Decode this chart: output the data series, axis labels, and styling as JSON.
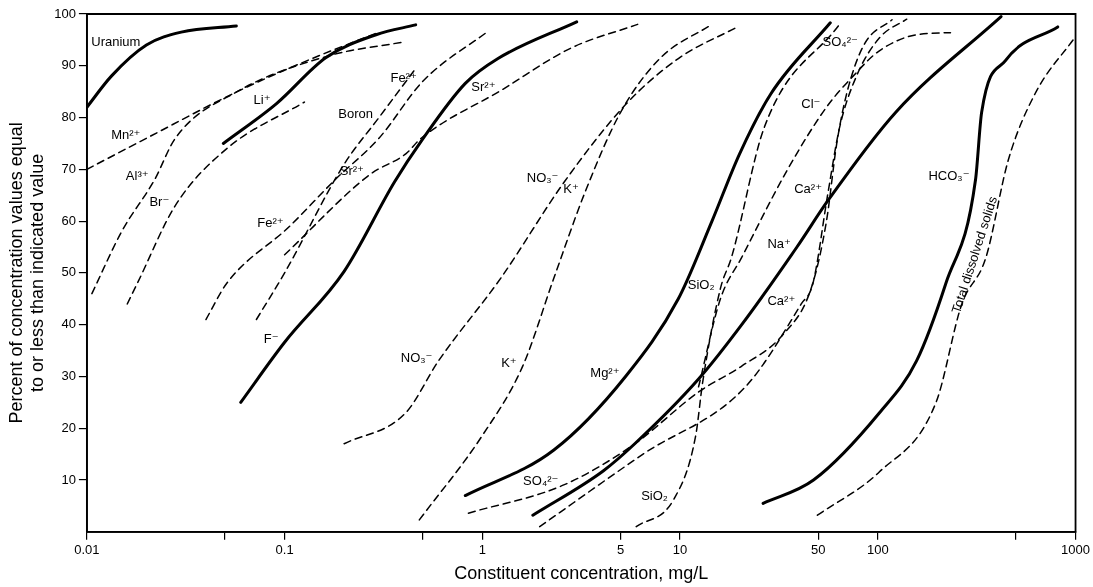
{
  "chart_data": {
    "type": "line",
    "xlabel": "Constituent concentration, mg/L",
    "ylabel": "Percent of concentration values equal to or less than indicated value",
    "log": "x",
    "xlim": [
      0.01,
      1000
    ],
    "xticks": [
      0.01,
      {
        "value": 0.05,
        "label": null
      },
      0.1,
      {
        "value": 0.5,
        "label": null
      },
      1,
      5,
      10,
      50,
      100,
      {
        "value": 500,
        "label": null
      },
      1000
    ],
    "ylim": [
      0,
      100
    ],
    "yticks": [
      10,
      20,
      30,
      40,
      50,
      60,
      70,
      80,
      90,
      100
    ],
    "grid": false,
    "legend": false,
    "series": [
      {
        "color": "#000000",
        "line_style": "solid",
        "x": [
          0.01,
          0.0133,
          0.02,
          0.03,
          0.057
        ],
        "values": [
          82,
          88,
          94,
          96.5,
          97.7
        ]
      },
      {
        "color": "#000000",
        "line_style": "dashed",
        "x": [
          0.01,
          0.02,
          0.0575,
          0.13,
          0.3
        ],
        "values": [
          70,
          76,
          85,
          91,
          96.5
        ]
      },
      {
        "color": "#000000",
        "line_style": "dashed",
        "x": [
          0.0106,
          0.015,
          0.022,
          0.028,
          0.0575,
          0.17,
          0.4
        ],
        "values": [
          46,
          58,
          68,
          76,
          85,
          92,
          94.6
        ]
      },
      {
        "color": "#000000",
        "line_style": "dashed",
        "x": [
          0.016,
          0.018,
          0.028,
          0.051,
          0.126
        ],
        "values": [
          44,
          48,
          63,
          74,
          83
        ]
      },
      {
        "color": "#000000",
        "line_style": "solid",
        "x": [
          0.049,
          0.091,
          0.162,
          0.29,
          0.46
        ],
        "values": [
          75,
          82.7,
          91.6,
          96,
          97.9
        ]
      },
      {
        "color": "#000000",
        "line_style": "dashed",
        "x": [
          0.072,
          0.1,
          0.2,
          0.3,
          0.45
        ],
        "values": [
          41,
          50,
          71,
          80,
          89
        ]
      },
      {
        "color": "#000000",
        "line_style": "dashed",
        "x": [
          0.04,
          0.051,
          0.106,
          0.18,
          0.3,
          0.5,
          1.08
        ],
        "values": [
          41,
          48,
          59,
          68,
          76,
          87,
          96.8
        ]
      },
      {
        "color": "#000000",
        "line_style": "dashed",
        "x": [
          0.1,
          0.27,
          0.41,
          0.49,
          1.25,
          2.8,
          6.1
        ],
        "values": [
          53.5,
          69,
          73,
          76,
          85.3,
          93.4,
          98
        ]
      },
      {
        "color": "#000000",
        "line_style": "solid",
        "x": [
          0.06,
          0.1,
          0.2,
          0.36,
          0.49,
          0.82,
          1.2,
          3
        ],
        "values": [
          25,
          36.6,
          50.3,
          67.6,
          75.4,
          86.6,
          91.4,
          98.5
        ]
      },
      {
        "color": "#000000",
        "line_style": "dashed",
        "x": [
          0.2,
          0.41,
          0.6,
          1.24,
          2.6,
          5.3,
          9.8,
          19.5
        ],
        "values": [
          17,
          23,
          33,
          49,
          67.6,
          82.5,
          91.4,
          97.5
        ]
      },
      {
        "color": "#000000",
        "line_style": "dashed",
        "x": [
          0.48,
          1,
          1.6,
          2.3,
          3.3,
          5,
          7.9,
          14.5
        ],
        "values": [
          2.3,
          18.6,
          32,
          49,
          65.5,
          81,
          91.4,
          98
        ]
      },
      {
        "color": "#000000",
        "line_style": "solid",
        "x": [
          0.82,
          2.3,
          5.3,
          9.8,
          14.5,
          20,
          28.8,
          57.5
        ],
        "values": [
          7,
          15.8,
          30,
          45,
          60,
          73,
          84.6,
          98.3
        ]
      },
      {
        "color": "#000000",
        "line_style": "dashed",
        "x": [
          6,
          9.3,
          12,
          13,
          16,
          18.2,
          26.6,
          64
        ],
        "values": [
          1,
          6.3,
          18.6,
          28.8,
          47,
          53,
          78,
          98
        ]
      },
      {
        "color": "#000000",
        "line_style": "solid",
        "x": [
          1.8,
          4.1,
          5.9,
          12.4,
          20.5,
          39,
          56,
          123,
          420
        ],
        "values": [
          3.2,
          11.8,
          17,
          29.5,
          40,
          55,
          64,
          81,
          99.5
        ]
      },
      {
        "color": "#000000",
        "line_style": "dashed",
        "x": [
          0.85,
          2.6,
          5.9,
          12.4,
          20.5,
          33,
          46,
          55,
          62,
          70,
          85,
          118
        ],
        "values": [
          3.6,
          9.1,
          17,
          27,
          32,
          38,
          47,
          60,
          75,
          85,
          94,
          98.9
        ]
      },
      {
        "color": "#000000",
        "line_style": "dashed",
        "x": [
          1.95,
          6.5,
          21.4,
          41,
          47,
          56,
          64,
          78,
          102,
          140
        ],
        "values": [
          1,
          15,
          28,
          44,
          48,
          65.5,
          78,
          88,
          95.4,
          99
        ]
      },
      {
        "color": "#000000",
        "line_style": "dashed",
        "x": [
          12.4,
          16,
          20.5,
          35,
          55,
          75,
          101,
          157,
          233
        ],
        "values": [
          28,
          45,
          53,
          70,
          82,
          88,
          92.8,
          96,
          96.4
        ]
      },
      {
        "color": "#000000",
        "line_style": "solid",
        "x": [
          26.3,
          47.3,
          102,
          157,
          221,
          312,
          335,
          442,
          813
        ],
        "values": [
          5.5,
          10,
          23,
          33,
          48,
          68,
          81,
          91,
          97.5
        ]
      },
      {
        "color": "#000000",
        "line_style": "dashed",
        "x": [
          49.5,
          102,
          197,
          266,
          351,
          457,
          624,
          989
        ],
        "values": [
          3.2,
          11.6,
          25,
          44,
          52.8,
          71.8,
          84.6,
          95.4
        ]
      }
    ],
    "annotations": [
      {
        "text": "Uranium",
        "x": 0.02,
        "y": 94
      },
      {
        "text": "Mn²⁺",
        "x": 0.02,
        "y": 76
      },
      {
        "text": "Al³⁺",
        "x": 0.022,
        "y": 68
      },
      {
        "text": "Br⁻",
        "x": 0.028,
        "y": 63
      },
      {
        "text": "Li⁺",
        "x": 0.091,
        "y": 82.7
      },
      {
        "text": "Boron",
        "x": 0.3,
        "y": 80
      },
      {
        "text": "Sr²⁺",
        "x": 0.27,
        "y": 69
      },
      {
        "text": "Fe²⁺",
        "x": 0.106,
        "y": 59
      },
      {
        "text": "F⁻",
        "x": 0.1,
        "y": 36.6
      },
      {
        "text": "Fe²⁺",
        "x": 0.5,
        "y": 87
      },
      {
        "text": "Sr²⁺",
        "x": 1.25,
        "y": 85.3
      },
      {
        "text": "NO₃⁻",
        "x": 2.6,
        "y": 67.6
      },
      {
        "text": "K⁺",
        "x": 3.3,
        "y": 65.5
      },
      {
        "text": "NO₃⁻",
        "x": 0.6,
        "y": 33
      },
      {
        "text": "K⁺",
        "x": 1.6,
        "y": 32
      },
      {
        "text": "Mg²⁺",
        "x": 5.3,
        "y": 30
      },
      {
        "text": "SiO₂",
        "x": 16,
        "y": 47
      },
      {
        "text": "SO₄²⁻",
        "x": 2.6,
        "y": 9.1
      },
      {
        "text": "SiO₂",
        "x": 9.3,
        "y": 6.3
      },
      {
        "text": "Na⁺",
        "x": 39,
        "y": 55
      },
      {
        "text": "Ca²⁺",
        "x": 56,
        "y": 65.5
      },
      {
        "text": "Cl⁻",
        "x": 55,
        "y": 82
      },
      {
        "text": "SO₄²⁻",
        "x": 85,
        "y": 94
      },
      {
        "text": "HCO₃⁻",
        "x": 312,
        "y": 68
      },
      {
        "text": "Ca²⁺",
        "x": 41,
        "y": 44
      },
      {
        "text": "Total dissolved solids",
        "x": 351,
        "y": 52.8
      }
    ]
  }
}
